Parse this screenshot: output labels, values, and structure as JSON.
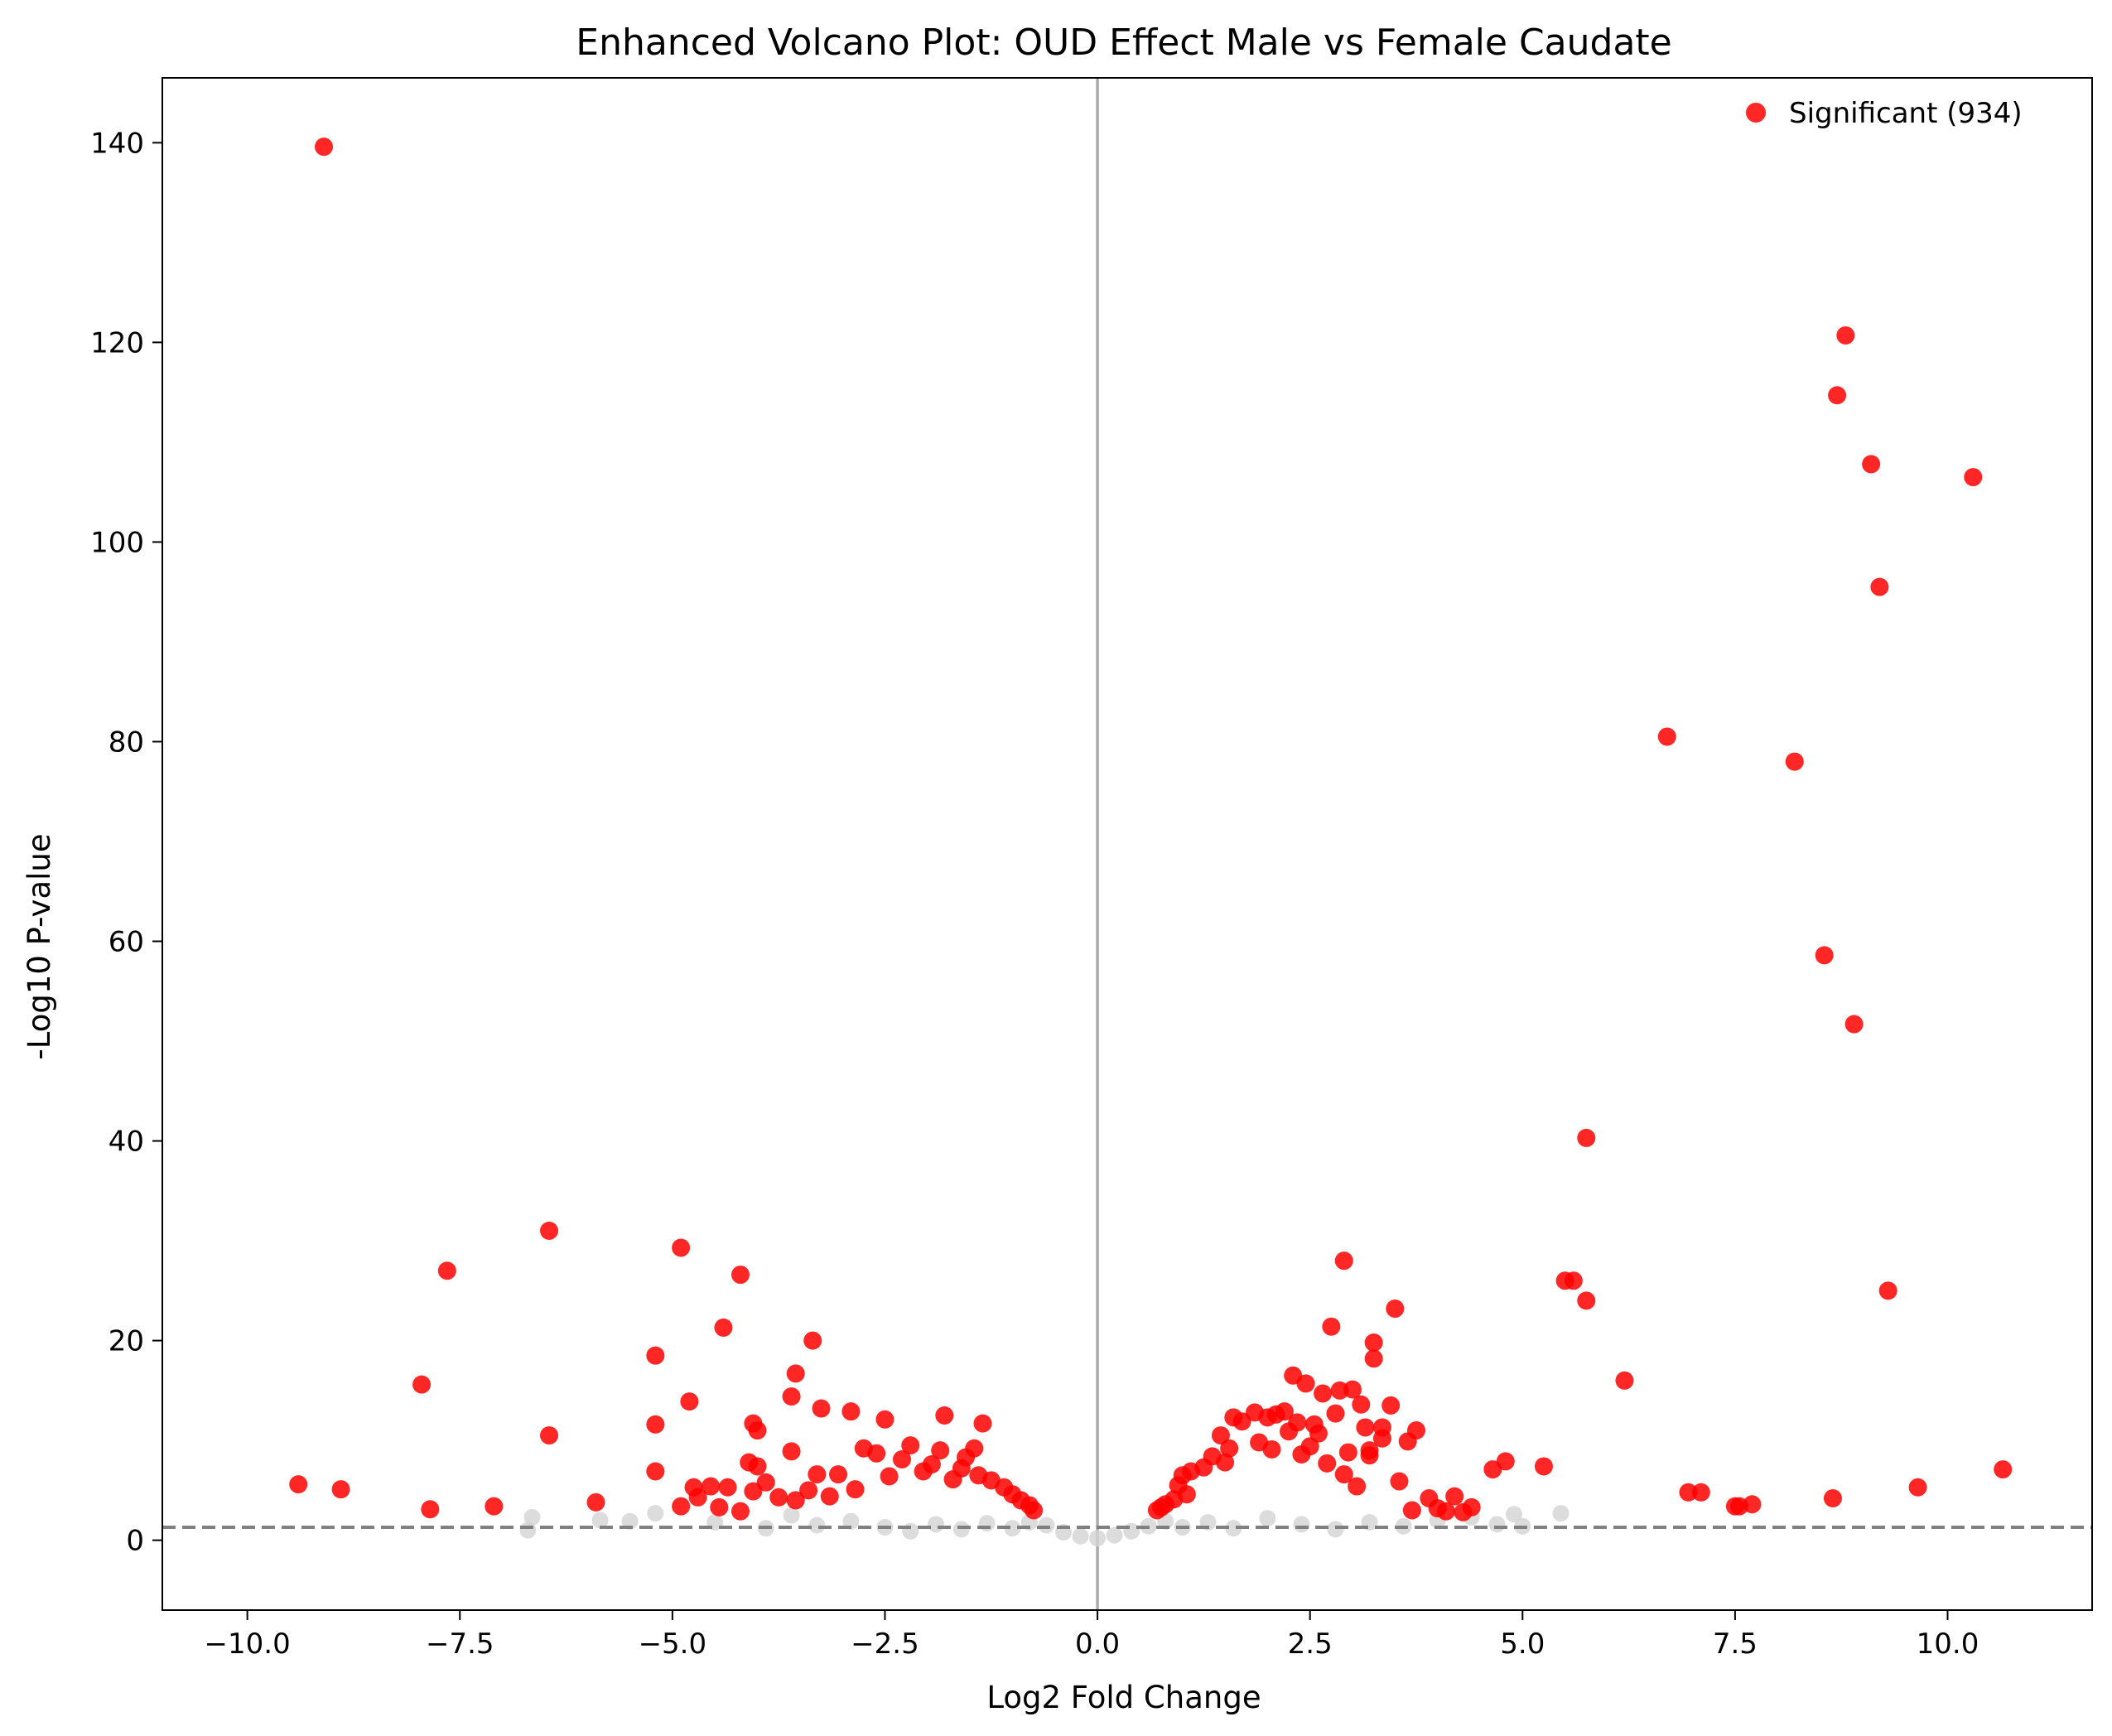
{
  "chart_data": {
    "type": "scatter",
    "title": "Enhanced Volcano Plot: OUD Effect Male vs Female Caudate",
    "xlabel": "Log2 Fold Change",
    "ylabel": "-Log10 P-value",
    "xlim": [
      -11.0,
      11.7
    ],
    "ylim": [
      -7,
      146.5
    ],
    "xticks": [
      -10.0,
      -7.5,
      -5.0,
      -2.5,
      0.0,
      2.5,
      5.0,
      7.5,
      10.0
    ],
    "xtick_labels": [
      "−10.0",
      "−7.5",
      "−5.0",
      "−2.5",
      "0.0",
      "2.5",
      "5.0",
      "7.5",
      "10.0"
    ],
    "yticks": [
      0,
      20,
      40,
      60,
      80,
      100,
      120,
      140
    ],
    "ytick_labels": [
      "0",
      "20",
      "40",
      "60",
      "80",
      "100",
      "120",
      "140"
    ],
    "threshold_y": 1.3,
    "vline_x": 0,
    "grid": false,
    "legend": {
      "position": "top-right",
      "entries": [
        {
          "label": "Significant (934)",
          "color": "#ff0000"
        }
      ]
    },
    "colors": {
      "significant": "#ff0000",
      "nonsignificant": "#d3d3d3",
      "threshold_line": "#808080",
      "zero_line": "#aaaaaa"
    },
    "series": [
      {
        "name": "Significant (934)",
        "color": "#ff0000",
        "points": [
          [
            -9.1,
            139.6
          ],
          [
            8.8,
            120.7
          ],
          [
            8.7,
            114.7
          ],
          [
            9.1,
            107.8
          ],
          [
            10.3,
            106.5
          ],
          [
            9.2,
            95.5
          ],
          [
            6.7,
            80.5
          ],
          [
            8.2,
            78.0
          ],
          [
            8.55,
            58.6
          ],
          [
            8.9,
            51.7
          ],
          [
            5.75,
            40.3
          ],
          [
            -6.45,
            31.0
          ],
          [
            -4.9,
            29.3
          ],
          [
            -7.65,
            27.0
          ],
          [
            -4.2,
            26.6
          ],
          [
            2.9,
            28.0
          ],
          [
            5.5,
            26.0
          ],
          [
            5.6,
            26.0
          ],
          [
            9.3,
            25.0
          ],
          [
            5.75,
            24.0
          ],
          [
            3.5,
            23.2
          ],
          [
            2.75,
            21.4
          ],
          [
            -4.4,
            21.3
          ],
          [
            -3.35,
            20.0
          ],
          [
            3.25,
            19.8
          ],
          [
            3.25,
            18.2
          ],
          [
            -5.2,
            18.5
          ],
          [
            -3.55,
            16.7
          ],
          [
            -7.95,
            15.6
          ],
          [
            6.2,
            16.0
          ],
          [
            2.3,
            16.5
          ],
          [
            2.45,
            15.7
          ],
          [
            -3.6,
            14.4
          ],
          [
            -4.8,
            13.9
          ],
          [
            2.85,
            15.0
          ],
          [
            3.0,
            15.1
          ],
          [
            3.45,
            13.5
          ],
          [
            -3.25,
            13.2
          ],
          [
            -2.9,
            12.9
          ],
          [
            -2.5,
            12.1
          ],
          [
            -1.8,
            12.5
          ],
          [
            -1.35,
            11.7
          ],
          [
            -5.2,
            11.6
          ],
          [
            -4.05,
            11.7
          ],
          [
            -4.0,
            11.0
          ],
          [
            -6.45,
            10.5
          ],
          [
            3.35,
            11.3
          ],
          [
            3.75,
            11.0
          ],
          [
            3.65,
            9.9
          ],
          [
            3.2,
            8.5
          ],
          [
            3.2,
            9.0
          ],
          [
            3.35,
            10.2
          ],
          [
            -3.6,
            8.9
          ],
          [
            -2.2,
            9.5
          ],
          [
            -1.85,
            9.0
          ],
          [
            -1.55,
            8.3
          ],
          [
            -1.45,
            9.2
          ],
          [
            -4.1,
            7.8
          ],
          [
            -4.0,
            7.4
          ],
          [
            -3.9,
            5.8
          ],
          [
            -3.75,
            4.3
          ],
          [
            -3.3,
            6.6
          ],
          [
            -5.2,
            6.9
          ],
          [
            -4.75,
            5.3
          ],
          [
            -4.55,
            5.4
          ],
          [
            -4.35,
            5.3
          ],
          [
            -4.9,
            3.4
          ],
          [
            -4.7,
            4.3
          ],
          [
            -4.45,
            3.3
          ],
          [
            -4.2,
            2.9
          ],
          [
            -4.05,
            4.9
          ],
          [
            -9.4,
            5.6
          ],
          [
            -8.9,
            5.1
          ],
          [
            -7.85,
            3.1
          ],
          [
            -7.1,
            3.4
          ],
          [
            -5.9,
            3.8
          ],
          [
            4.65,
            7.1
          ],
          [
            4.8,
            7.9
          ],
          [
            5.25,
            7.4
          ],
          [
            10.65,
            7.1
          ],
          [
            6.95,
            4.8
          ],
          [
            7.1,
            4.8
          ],
          [
            7.5,
            3.4
          ],
          [
            7.55,
            3.4
          ],
          [
            7.7,
            3.6
          ],
          [
            8.65,
            4.2
          ],
          [
            9.65,
            5.3
          ],
          [
            3.55,
            5.9
          ],
          [
            3.9,
            4.2
          ],
          [
            4.2,
            4.4
          ],
          [
            4.4,
            3.3
          ],
          [
            4.0,
            3.2
          ],
          [
            3.7,
            3.0
          ],
          [
            4.3,
            2.8
          ],
          [
            4.1,
            2.9
          ],
          [
            1.35,
            8.4
          ],
          [
            1.45,
            10.5
          ],
          [
            1.6,
            12.3
          ],
          [
            1.7,
            11.9
          ],
          [
            1.85,
            12.8
          ],
          [
            2.0,
            12.3
          ],
          [
            2.1,
            12.6
          ],
          [
            2.2,
            12.9
          ],
          [
            2.35,
            11.8
          ],
          [
            2.55,
            11.6
          ],
          [
            2.65,
            14.7
          ],
          [
            2.6,
            10.7
          ],
          [
            2.8,
            12.7
          ],
          [
            3.1,
            13.6
          ],
          [
            3.15,
            11.3
          ],
          [
            1.55,
            9.2
          ],
          [
            1.9,
            9.8
          ],
          [
            2.25,
            10.9
          ],
          [
            2.5,
            9.4
          ],
          [
            2.95,
            8.8
          ],
          [
            0.95,
            5.5
          ],
          [
            1.0,
            6.5
          ],
          [
            1.1,
            6.9
          ],
          [
            1.25,
            7.3
          ],
          [
            1.5,
            7.8
          ],
          [
            2.05,
            9.1
          ],
          [
            2.4,
            8.6
          ],
          [
            2.7,
            7.7
          ],
          [
            2.9,
            6.6
          ],
          [
            3.05,
            5.4
          ],
          [
            0.7,
            3.0
          ],
          [
            0.75,
            3.3
          ],
          [
            0.8,
            3.6
          ],
          [
            0.9,
            4.1
          ],
          [
            1.05,
            4.6
          ],
          [
            -0.75,
            3.0
          ],
          [
            -0.8,
            3.5
          ],
          [
            -0.9,
            4.0
          ],
          [
            -1.0,
            4.6
          ],
          [
            -1.1,
            5.3
          ],
          [
            -1.25,
            6.0
          ],
          [
            -1.4,
            6.5
          ],
          [
            -1.6,
            7.2
          ],
          [
            -1.95,
            7.6
          ],
          [
            -2.3,
            8.1
          ],
          [
            -2.6,
            8.7
          ],
          [
            -2.75,
            9.2
          ],
          [
            -3.05,
            6.6
          ],
          [
            -3.4,
            5.0
          ],
          [
            -3.55,
            4.0
          ],
          [
            -2.45,
            6.4
          ],
          [
            -2.05,
            6.9
          ],
          [
            -1.7,
            6.1
          ],
          [
            -2.85,
            5.1
          ],
          [
            -3.15,
            4.4
          ]
        ]
      },
      {
        "name": "",
        "color": "#d3d3d3",
        "points": [
          [
            -6.7,
            1.0
          ],
          [
            -6.65,
            2.3
          ],
          [
            -5.85,
            2.0
          ],
          [
            -5.5,
            1.9
          ],
          [
            -5.2,
            2.7
          ],
          [
            -4.5,
            1.8
          ],
          [
            -3.9,
            1.2
          ],
          [
            -3.6,
            2.5
          ],
          [
            -3.3,
            1.5
          ],
          [
            -2.9,
            1.9
          ],
          [
            -2.5,
            1.3
          ],
          [
            -2.2,
            0.9
          ],
          [
            -1.9,
            1.6
          ],
          [
            -1.6,
            1.1
          ],
          [
            -1.3,
            1.7
          ],
          [
            -1.0,
            1.2
          ],
          [
            -0.8,
            1.8
          ],
          [
            -0.6,
            1.5
          ],
          [
            -0.4,
            0.8
          ],
          [
            -0.2,
            0.4
          ],
          [
            0.0,
            0.2
          ],
          [
            0.2,
            0.5
          ],
          [
            0.4,
            0.9
          ],
          [
            0.6,
            1.4
          ],
          [
            0.8,
            1.9
          ],
          [
            1.0,
            1.3
          ],
          [
            1.3,
            1.8
          ],
          [
            1.6,
            1.2
          ],
          [
            2.0,
            2.2
          ],
          [
            2.4,
            1.6
          ],
          [
            2.8,
            1.1
          ],
          [
            3.2,
            1.8
          ],
          [
            3.6,
            1.4
          ],
          [
            4.0,
            2.0
          ],
          [
            4.4,
            2.3
          ],
          [
            4.7,
            1.6
          ],
          [
            4.9,
            2.6
          ],
          [
            5.0,
            1.4
          ],
          [
            5.45,
            2.7
          ]
        ]
      }
    ]
  }
}
